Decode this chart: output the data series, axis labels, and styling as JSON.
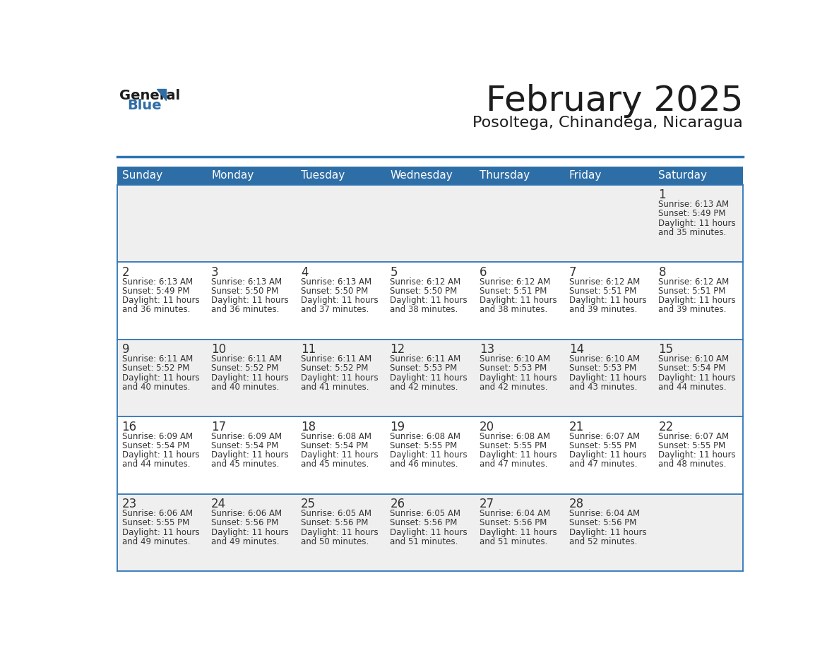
{
  "title": "February 2025",
  "subtitle": "Posoltega, Chinandega, Nicaragua",
  "days_of_week": [
    "Sunday",
    "Monday",
    "Tuesday",
    "Wednesday",
    "Thursday",
    "Friday",
    "Saturday"
  ],
  "header_bg_color": "#2E6EA6",
  "header_text_color": "#FFFFFF",
  "cell_bg_even": "#EFEFEF",
  "cell_bg_odd": "#FFFFFF",
  "border_color": "#2E75B6",
  "day_number_color": "#333333",
  "text_color": "#333333",
  "logo_triangle_color": "#2E6EA6",
  "calendar_data": [
    [
      null,
      null,
      null,
      null,
      null,
      null,
      {
        "day": 1,
        "sunrise": "6:13 AM",
        "sunset": "5:49 PM",
        "daylight": "11 hours",
        "daylight2": "and 35 minutes."
      }
    ],
    [
      {
        "day": 2,
        "sunrise": "6:13 AM",
        "sunset": "5:49 PM",
        "daylight": "11 hours",
        "daylight2": "and 36 minutes."
      },
      {
        "day": 3,
        "sunrise": "6:13 AM",
        "sunset": "5:50 PM",
        "daylight": "11 hours",
        "daylight2": "and 36 minutes."
      },
      {
        "day": 4,
        "sunrise": "6:13 AM",
        "sunset": "5:50 PM",
        "daylight": "11 hours",
        "daylight2": "and 37 minutes."
      },
      {
        "day": 5,
        "sunrise": "6:12 AM",
        "sunset": "5:50 PM",
        "daylight": "11 hours",
        "daylight2": "and 38 minutes."
      },
      {
        "day": 6,
        "sunrise": "6:12 AM",
        "sunset": "5:51 PM",
        "daylight": "11 hours",
        "daylight2": "and 38 minutes."
      },
      {
        "day": 7,
        "sunrise": "6:12 AM",
        "sunset": "5:51 PM",
        "daylight": "11 hours",
        "daylight2": "and 39 minutes."
      },
      {
        "day": 8,
        "sunrise": "6:12 AM",
        "sunset": "5:51 PM",
        "daylight": "11 hours",
        "daylight2": "and 39 minutes."
      }
    ],
    [
      {
        "day": 9,
        "sunrise": "6:11 AM",
        "sunset": "5:52 PM",
        "daylight": "11 hours",
        "daylight2": "and 40 minutes."
      },
      {
        "day": 10,
        "sunrise": "6:11 AM",
        "sunset": "5:52 PM",
        "daylight": "11 hours",
        "daylight2": "and 40 minutes."
      },
      {
        "day": 11,
        "sunrise": "6:11 AM",
        "sunset": "5:52 PM",
        "daylight": "11 hours",
        "daylight2": "and 41 minutes."
      },
      {
        "day": 12,
        "sunrise": "6:11 AM",
        "sunset": "5:53 PM",
        "daylight": "11 hours",
        "daylight2": "and 42 minutes."
      },
      {
        "day": 13,
        "sunrise": "6:10 AM",
        "sunset": "5:53 PM",
        "daylight": "11 hours",
        "daylight2": "and 42 minutes."
      },
      {
        "day": 14,
        "sunrise": "6:10 AM",
        "sunset": "5:53 PM",
        "daylight": "11 hours",
        "daylight2": "and 43 minutes."
      },
      {
        "day": 15,
        "sunrise": "6:10 AM",
        "sunset": "5:54 PM",
        "daylight": "11 hours",
        "daylight2": "and 44 minutes."
      }
    ],
    [
      {
        "day": 16,
        "sunrise": "6:09 AM",
        "sunset": "5:54 PM",
        "daylight": "11 hours",
        "daylight2": "and 44 minutes."
      },
      {
        "day": 17,
        "sunrise": "6:09 AM",
        "sunset": "5:54 PM",
        "daylight": "11 hours",
        "daylight2": "and 45 minutes."
      },
      {
        "day": 18,
        "sunrise": "6:08 AM",
        "sunset": "5:54 PM",
        "daylight": "11 hours",
        "daylight2": "and 45 minutes."
      },
      {
        "day": 19,
        "sunrise": "6:08 AM",
        "sunset": "5:55 PM",
        "daylight": "11 hours",
        "daylight2": "and 46 minutes."
      },
      {
        "day": 20,
        "sunrise": "6:08 AM",
        "sunset": "5:55 PM",
        "daylight": "11 hours",
        "daylight2": "and 47 minutes."
      },
      {
        "day": 21,
        "sunrise": "6:07 AM",
        "sunset": "5:55 PM",
        "daylight": "11 hours",
        "daylight2": "and 47 minutes."
      },
      {
        "day": 22,
        "sunrise": "6:07 AM",
        "sunset": "5:55 PM",
        "daylight": "11 hours",
        "daylight2": "and 48 minutes."
      }
    ],
    [
      {
        "day": 23,
        "sunrise": "6:06 AM",
        "sunset": "5:55 PM",
        "daylight": "11 hours",
        "daylight2": "and 49 minutes."
      },
      {
        "day": 24,
        "sunrise": "6:06 AM",
        "sunset": "5:56 PM",
        "daylight": "11 hours",
        "daylight2": "and 49 minutes."
      },
      {
        "day": 25,
        "sunrise": "6:05 AM",
        "sunset": "5:56 PM",
        "daylight": "11 hours",
        "daylight2": "and 50 minutes."
      },
      {
        "day": 26,
        "sunrise": "6:05 AM",
        "sunset": "5:56 PM",
        "daylight": "11 hours",
        "daylight2": "and 51 minutes."
      },
      {
        "day": 27,
        "sunrise": "6:04 AM",
        "sunset": "5:56 PM",
        "daylight": "11 hours",
        "daylight2": "and 51 minutes."
      },
      {
        "day": 28,
        "sunrise": "6:04 AM",
        "sunset": "5:56 PM",
        "daylight": "11 hours",
        "daylight2": "and 52 minutes."
      },
      null
    ]
  ]
}
